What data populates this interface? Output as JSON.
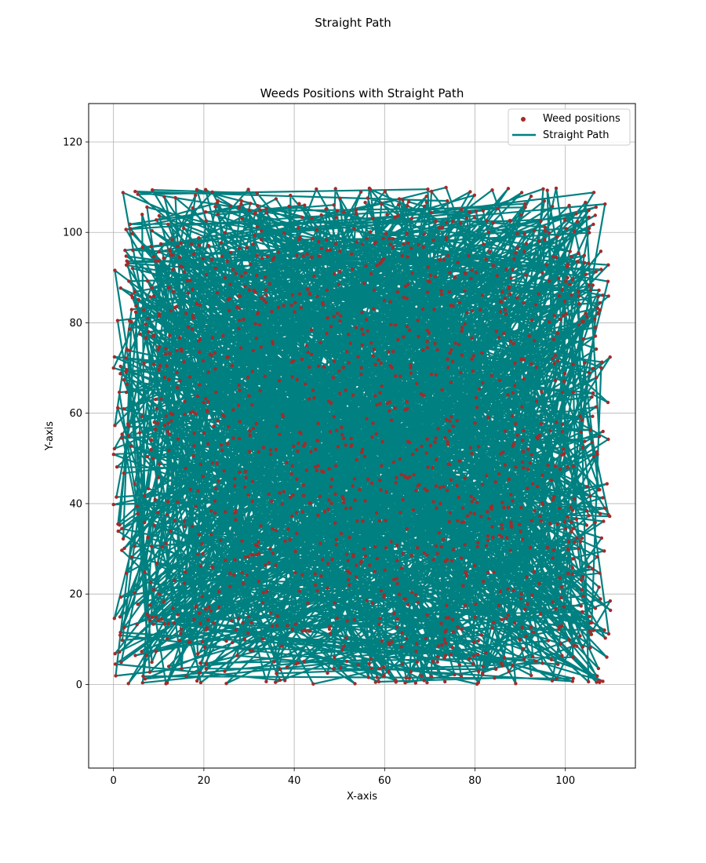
{
  "figure": {
    "suptitle": "Straight Path"
  },
  "chart_data": {
    "type": "scatter",
    "title": "Weeds Positions with Straight Path",
    "xlabel": "X-axis",
    "ylabel": "Y-axis",
    "xlim": [
      -5.5,
      115.5
    ],
    "ylim": [
      -18.5,
      128.5
    ],
    "xticks": [
      0,
      20,
      40,
      60,
      80,
      100
    ],
    "yticks": [
      0,
      20,
      40,
      60,
      80,
      100,
      120
    ],
    "grid": true,
    "legend": {
      "placement": "top-right",
      "entries": [
        "Weed positions",
        "Straight Path"
      ]
    },
    "series": [
      {
        "name": "Weed positions",
        "kind": "scatter",
        "color": "#a52a2a",
        "count": 1600,
        "region": {
          "x": [
            0,
            110
          ],
          "y": [
            0,
            110
          ]
        },
        "points_sample": [
          [
            2.1,
            108.8
          ],
          [
            8.6,
            109.4
          ],
          [
            44.9,
            109.6
          ],
          [
            96.0,
            109.3
          ],
          [
            109.5,
            92.8
          ],
          [
            109.9,
            72.4
          ],
          [
            109.8,
            37.2
          ],
          [
            109.6,
            11.2
          ],
          [
            107.6,
            0.8
          ],
          [
            89.0,
            0.2
          ],
          [
            62.5,
            0.5
          ],
          [
            44.2,
            0.1
          ],
          [
            19.3,
            0.4
          ],
          [
            3.3,
            0.2
          ],
          [
            0.4,
            4.5
          ],
          [
            0.0,
            39.8
          ],
          [
            0.0,
            70.0
          ],
          [
            0.3,
            91.6
          ],
          [
            30.2,
            55.1
          ],
          [
            55.0,
            82.3
          ],
          [
            71.4,
            30.6
          ],
          [
            88.8,
            66.1
          ],
          [
            15.7,
            22.4
          ],
          [
            40.5,
            38.0
          ]
        ]
      },
      {
        "name": "Straight Path",
        "kind": "line",
        "color": "#008080",
        "path": "straight segments connecting the weed positions in visiting order"
      }
    ]
  }
}
